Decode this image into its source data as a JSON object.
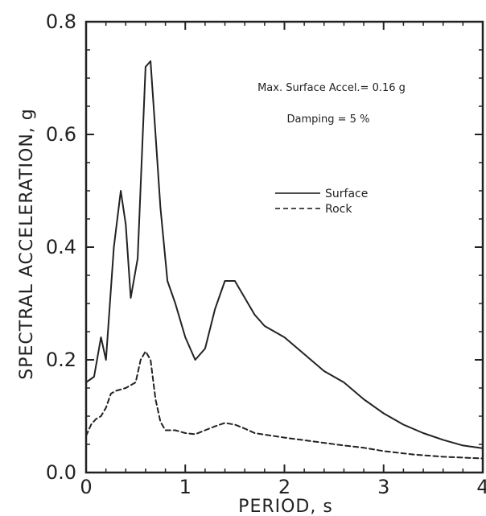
{
  "chart_data": {
    "type": "line",
    "xlabel": "PERIOD, s",
    "ylabel": "SPECTRAL ACCELERATION, g",
    "xlim": [
      0,
      4
    ],
    "ylim": [
      0,
      0.8
    ],
    "x_ticks": [
      "0",
      "1",
      "2",
      "3",
      "4"
    ],
    "y_ticks": [
      "0.0",
      "0.2",
      "0.4",
      "0.6",
      "0.8"
    ],
    "grid": false,
    "legend_position": "right-center",
    "annotations": [
      "Max. Surface Accel.= 0.16 g",
      "Damping = 5 %"
    ],
    "series": [
      {
        "name": "Surface",
        "style": "solid",
        "x": [
          0,
          0.08,
          0.15,
          0.2,
          0.28,
          0.35,
          0.4,
          0.45,
          0.52,
          0.6,
          0.65,
          0.7,
          0.75,
          0.82,
          0.9,
          1.0,
          1.1,
          1.2,
          1.3,
          1.4,
          1.5,
          1.6,
          1.7,
          1.8,
          2.0,
          2.2,
          2.4,
          2.6,
          2.8,
          3.0,
          3.2,
          3.4,
          3.6,
          3.8,
          4.0
        ],
        "y": [
          0.16,
          0.17,
          0.24,
          0.2,
          0.4,
          0.5,
          0.44,
          0.31,
          0.38,
          0.72,
          0.73,
          0.6,
          0.47,
          0.34,
          0.3,
          0.24,
          0.2,
          0.22,
          0.29,
          0.34,
          0.34,
          0.31,
          0.28,
          0.26,
          0.24,
          0.21,
          0.18,
          0.16,
          0.13,
          0.105,
          0.085,
          0.07,
          0.058,
          0.048,
          0.043
        ]
      },
      {
        "name": "Rock",
        "style": "dashed",
        "x": [
          0,
          0.05,
          0.1,
          0.15,
          0.2,
          0.25,
          0.3,
          0.4,
          0.5,
          0.55,
          0.6,
          0.65,
          0.7,
          0.75,
          0.8,
          0.9,
          1.0,
          1.1,
          1.2,
          1.3,
          1.4,
          1.5,
          1.6,
          1.7,
          2.0,
          2.3,
          2.6,
          2.8,
          3.0,
          3.3,
          3.6,
          4.0
        ],
        "y": [
          0.065,
          0.085,
          0.095,
          0.1,
          0.115,
          0.14,
          0.145,
          0.15,
          0.16,
          0.2,
          0.215,
          0.2,
          0.13,
          0.09,
          0.075,
          0.075,
          0.07,
          0.068,
          0.075,
          0.082,
          0.088,
          0.085,
          0.078,
          0.07,
          0.062,
          0.055,
          0.048,
          0.044,
          0.038,
          0.032,
          0.028,
          0.025
        ]
      }
    ]
  }
}
